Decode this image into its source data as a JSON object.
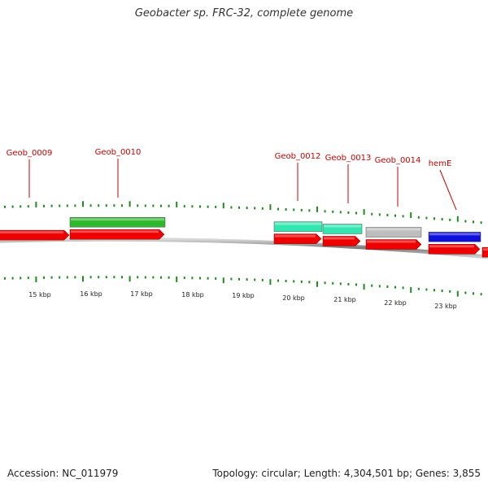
{
  "title": "Geobacter sp. FRC-32, complete genome",
  "footer": {
    "accession": "Accession: NC_011979",
    "summary": "Topology: circular; Length: 4,304,501 bp; Genes: 3,855"
  },
  "colors": {
    "cds": "#ee0000",
    "backbone": "#999999",
    "tick": "#1e8c1e",
    "label": "#cc0000",
    "green": "#2eb82e",
    "aquamarine": "#33e6b0",
    "gray": "#bdbdbd",
    "blue": "#1010dd"
  },
  "kbp_labels": [
    "15 kbp",
    "16 kbp",
    "17 kbp",
    "18 kbp",
    "19 kbp",
    "20 kbp",
    "21 kbp",
    "22 kbp",
    "23 kbp"
  ],
  "genes": [
    {
      "name": "Geob_0009",
      "label": "Geob_0009"
    },
    {
      "name": "Geob_0010",
      "label": "Geob_0010"
    },
    {
      "name": "Geob_0012",
      "label": "Geob_0012"
    },
    {
      "name": "Geob_0013",
      "label": "Geob_0013"
    },
    {
      "name": "Geob_0014",
      "label": "Geob_0014"
    },
    {
      "name": "hemE",
      "label": "hemE"
    }
  ],
  "feature_bars": [
    {
      "name": "green",
      "color": "#2eb82e"
    },
    {
      "name": "aquamarine-1",
      "color": "#33e6b0"
    },
    {
      "name": "aquamarine-2",
      "color": "#33e6b0"
    },
    {
      "name": "gray",
      "color": "#bdbdbd"
    },
    {
      "name": "blue",
      "color": "#1010dd"
    }
  ]
}
